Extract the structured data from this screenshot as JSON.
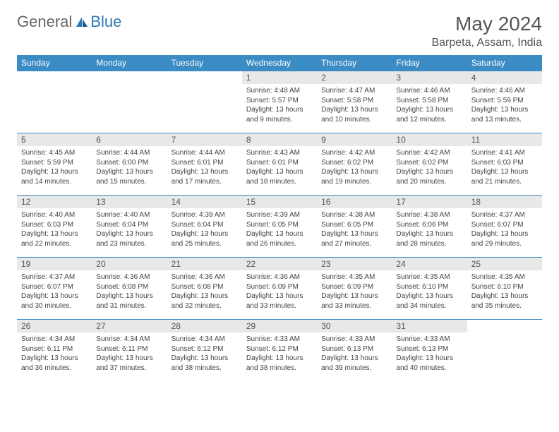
{
  "brand": {
    "part1": "General",
    "part2": "Blue"
  },
  "title": "May 2024",
  "location": "Barpeta, Assam, India",
  "colors": {
    "header_bg": "#3b8bc4",
    "header_text": "#ffffff",
    "daynum_bg": "#e8e8e8",
    "border": "#3b8bc4",
    "body_text": "#444444",
    "title_text": "#555555"
  },
  "weekdays": [
    "Sunday",
    "Monday",
    "Tuesday",
    "Wednesday",
    "Thursday",
    "Friday",
    "Saturday"
  ],
  "weeks": [
    [
      null,
      null,
      null,
      {
        "d": "1",
        "sr": "Sunrise: 4:48 AM",
        "ss": "Sunset: 5:57 PM",
        "dl": "Daylight: 13 hours and 9 minutes."
      },
      {
        "d": "2",
        "sr": "Sunrise: 4:47 AM",
        "ss": "Sunset: 5:58 PM",
        "dl": "Daylight: 13 hours and 10 minutes."
      },
      {
        "d": "3",
        "sr": "Sunrise: 4:46 AM",
        "ss": "Sunset: 5:58 PM",
        "dl": "Daylight: 13 hours and 12 minutes."
      },
      {
        "d": "4",
        "sr": "Sunrise: 4:46 AM",
        "ss": "Sunset: 5:59 PM",
        "dl": "Daylight: 13 hours and 13 minutes."
      }
    ],
    [
      {
        "d": "5",
        "sr": "Sunrise: 4:45 AM",
        "ss": "Sunset: 5:59 PM",
        "dl": "Daylight: 13 hours and 14 minutes."
      },
      {
        "d": "6",
        "sr": "Sunrise: 4:44 AM",
        "ss": "Sunset: 6:00 PM",
        "dl": "Daylight: 13 hours and 15 minutes."
      },
      {
        "d": "7",
        "sr": "Sunrise: 4:44 AM",
        "ss": "Sunset: 6:01 PM",
        "dl": "Daylight: 13 hours and 17 minutes."
      },
      {
        "d": "8",
        "sr": "Sunrise: 4:43 AM",
        "ss": "Sunset: 6:01 PM",
        "dl": "Daylight: 13 hours and 18 minutes."
      },
      {
        "d": "9",
        "sr": "Sunrise: 4:42 AM",
        "ss": "Sunset: 6:02 PM",
        "dl": "Daylight: 13 hours and 19 minutes."
      },
      {
        "d": "10",
        "sr": "Sunrise: 4:42 AM",
        "ss": "Sunset: 6:02 PM",
        "dl": "Daylight: 13 hours and 20 minutes."
      },
      {
        "d": "11",
        "sr": "Sunrise: 4:41 AM",
        "ss": "Sunset: 6:03 PM",
        "dl": "Daylight: 13 hours and 21 minutes."
      }
    ],
    [
      {
        "d": "12",
        "sr": "Sunrise: 4:40 AM",
        "ss": "Sunset: 6:03 PM",
        "dl": "Daylight: 13 hours and 22 minutes."
      },
      {
        "d": "13",
        "sr": "Sunrise: 4:40 AM",
        "ss": "Sunset: 6:04 PM",
        "dl": "Daylight: 13 hours and 23 minutes."
      },
      {
        "d": "14",
        "sr": "Sunrise: 4:39 AM",
        "ss": "Sunset: 6:04 PM",
        "dl": "Daylight: 13 hours and 25 minutes."
      },
      {
        "d": "15",
        "sr": "Sunrise: 4:39 AM",
        "ss": "Sunset: 6:05 PM",
        "dl": "Daylight: 13 hours and 26 minutes."
      },
      {
        "d": "16",
        "sr": "Sunrise: 4:38 AM",
        "ss": "Sunset: 6:05 PM",
        "dl": "Daylight: 13 hours and 27 minutes."
      },
      {
        "d": "17",
        "sr": "Sunrise: 4:38 AM",
        "ss": "Sunset: 6:06 PM",
        "dl": "Daylight: 13 hours and 28 minutes."
      },
      {
        "d": "18",
        "sr": "Sunrise: 4:37 AM",
        "ss": "Sunset: 6:07 PM",
        "dl": "Daylight: 13 hours and 29 minutes."
      }
    ],
    [
      {
        "d": "19",
        "sr": "Sunrise: 4:37 AM",
        "ss": "Sunset: 6:07 PM",
        "dl": "Daylight: 13 hours and 30 minutes."
      },
      {
        "d": "20",
        "sr": "Sunrise: 4:36 AM",
        "ss": "Sunset: 6:08 PM",
        "dl": "Daylight: 13 hours and 31 minutes."
      },
      {
        "d": "21",
        "sr": "Sunrise: 4:36 AM",
        "ss": "Sunset: 6:08 PM",
        "dl": "Daylight: 13 hours and 32 minutes."
      },
      {
        "d": "22",
        "sr": "Sunrise: 4:36 AM",
        "ss": "Sunset: 6:09 PM",
        "dl": "Daylight: 13 hours and 33 minutes."
      },
      {
        "d": "23",
        "sr": "Sunrise: 4:35 AM",
        "ss": "Sunset: 6:09 PM",
        "dl": "Daylight: 13 hours and 33 minutes."
      },
      {
        "d": "24",
        "sr": "Sunrise: 4:35 AM",
        "ss": "Sunset: 6:10 PM",
        "dl": "Daylight: 13 hours and 34 minutes."
      },
      {
        "d": "25",
        "sr": "Sunrise: 4:35 AM",
        "ss": "Sunset: 6:10 PM",
        "dl": "Daylight: 13 hours and 35 minutes."
      }
    ],
    [
      {
        "d": "26",
        "sr": "Sunrise: 4:34 AM",
        "ss": "Sunset: 6:11 PM",
        "dl": "Daylight: 13 hours and 36 minutes."
      },
      {
        "d": "27",
        "sr": "Sunrise: 4:34 AM",
        "ss": "Sunset: 6:11 PM",
        "dl": "Daylight: 13 hours and 37 minutes."
      },
      {
        "d": "28",
        "sr": "Sunrise: 4:34 AM",
        "ss": "Sunset: 6:12 PM",
        "dl": "Daylight: 13 hours and 38 minutes."
      },
      {
        "d": "29",
        "sr": "Sunrise: 4:33 AM",
        "ss": "Sunset: 6:12 PM",
        "dl": "Daylight: 13 hours and 38 minutes."
      },
      {
        "d": "30",
        "sr": "Sunrise: 4:33 AM",
        "ss": "Sunset: 6:13 PM",
        "dl": "Daylight: 13 hours and 39 minutes."
      },
      {
        "d": "31",
        "sr": "Sunrise: 4:33 AM",
        "ss": "Sunset: 6:13 PM",
        "dl": "Daylight: 13 hours and 40 minutes."
      },
      null
    ]
  ]
}
